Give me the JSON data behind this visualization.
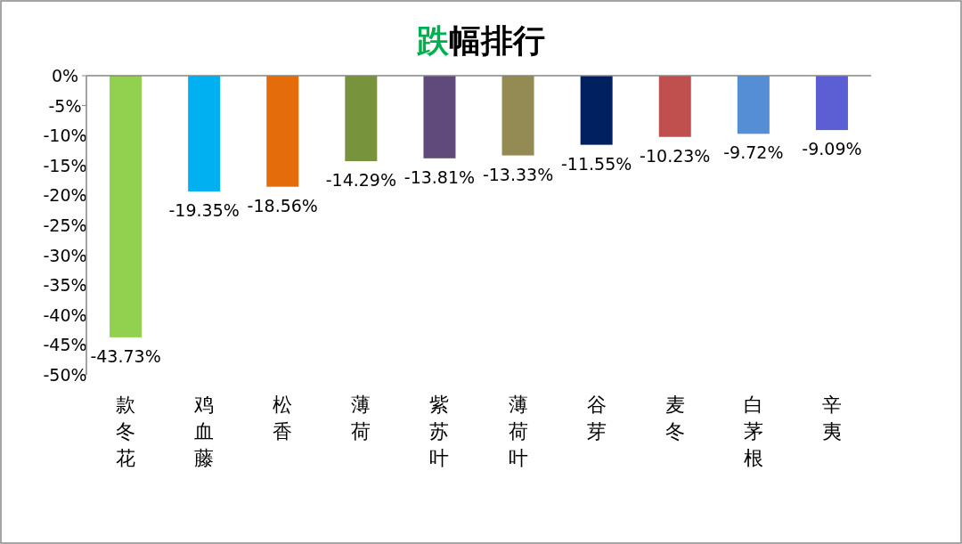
{
  "chart_data": {
    "type": "bar",
    "title": "跌幅排行",
    "categories": [
      "款冬花",
      "鸡血藤",
      "松香",
      "薄荷",
      "紫苏叶",
      "薄荷叶",
      "谷芽",
      "麦冬",
      "白茅根",
      "辛夷"
    ],
    "values": [
      -43.73,
      -19.35,
      -18.56,
      -14.29,
      -13.81,
      -13.33,
      -11.55,
      -10.23,
      -9.72,
      -9.09
    ],
    "colors": [
      "#92d050",
      "#00b0f0",
      "#e46c0a",
      "#77933c",
      "#604a7b",
      "#948a54",
      "#002060",
      "#c0504d",
      "#558ed5",
      "#5b5fd3"
    ],
    "value_labels": [
      "-43.73%",
      "-19.35%",
      "-18.56%",
      "-14.29%",
      "-13.81%",
      "-13.33%",
      "-11.55%",
      "-10.23%",
      "-9.72%",
      "-9.09%"
    ],
    "ylim": [
      -50,
      0
    ],
    "yticks": [
      {
        "value": 0,
        "label": "0%"
      },
      {
        "value": -5,
        "label": "-5%"
      },
      {
        "value": -10,
        "label": "-10%"
      },
      {
        "value": -15,
        "label": "-15%"
      },
      {
        "value": -20,
        "label": "-20%"
      },
      {
        "value": -25,
        "label": "-25%"
      },
      {
        "value": -30,
        "label": "-30%"
      },
      {
        "value": -35,
        "label": "-35%"
      },
      {
        "value": -40,
        "label": "-40%"
      },
      {
        "value": -45,
        "label": "-45%"
      },
      {
        "value": -50,
        "label": "-50%"
      }
    ],
    "grid": false
  }
}
